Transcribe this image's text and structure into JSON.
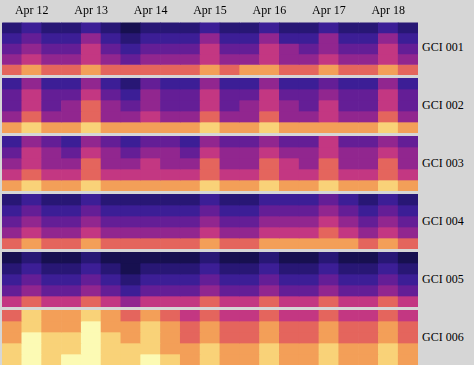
{
  "chart_data": {
    "type": "heatmap",
    "categories": [
      null,
      "Apr 12",
      null,
      null,
      "Apr 13",
      null,
      null,
      "Apr 14",
      null,
      null,
      "Apr 15",
      null,
      null,
      "Apr 16",
      null,
      null,
      "Apr 17",
      null,
      null,
      "Apr 18",
      null
    ],
    "color_range": [
      0,
      10
    ],
    "grid": true,
    "tick_labels": "x",
    "series": [
      {
        "name": "GCI 001",
        "cells": [
          [
            2,
            3,
            2,
            2,
            3,
            2,
            1,
            2,
            2,
            2,
            3,
            2,
            2,
            3,
            2,
            2,
            3,
            2,
            2,
            3,
            2
          ],
          [
            3,
            4,
            3,
            3,
            5,
            3,
            2,
            3,
            3,
            3,
            5,
            3,
            3,
            5,
            3,
            3,
            5,
            3,
            3,
            5,
            3
          ],
          [
            4,
            5,
            4,
            4,
            6,
            4,
            3,
            4,
            4,
            4,
            6,
            4,
            4,
            6,
            5,
            4,
            5,
            4,
            4,
            6,
            4
          ],
          [
            5,
            6,
            5,
            5,
            6,
            5,
            4,
            5,
            5,
            5,
            6,
            5,
            5,
            6,
            5,
            5,
            6,
            5,
            5,
            6,
            5
          ],
          [
            7,
            8,
            7,
            7,
            8,
            7,
            7,
            7,
            7,
            7,
            8,
            7,
            8,
            8,
            7,
            7,
            8,
            7,
            7,
            8,
            7
          ]
        ]
      },
      {
        "name": "GCI 002",
        "cells": [
          [
            3,
            5,
            3,
            3,
            5,
            3,
            2,
            4,
            3,
            3,
            5,
            3,
            3,
            5,
            3,
            3,
            4,
            3,
            3,
            5,
            3
          ],
          [
            4,
            6,
            4,
            4,
            6,
            4,
            3,
            5,
            4,
            4,
            6,
            4,
            4,
            6,
            4,
            4,
            5,
            4,
            4,
            6,
            4
          ],
          [
            4,
            6,
            4,
            5,
            7,
            5,
            4,
            5,
            4,
            4,
            6,
            4,
            5,
            6,
            5,
            4,
            6,
            4,
            4,
            6,
            4
          ],
          [
            5,
            7,
            5,
            5,
            7,
            5,
            5,
            6,
            5,
            5,
            7,
            5,
            5,
            7,
            5,
            5,
            6,
            5,
            5,
            7,
            5
          ],
          [
            8,
            9,
            8,
            8,
            9,
            8,
            8,
            8,
            8,
            8,
            9,
            8,
            8,
            9,
            8,
            8,
            8,
            8,
            8,
            9,
            8
          ]
        ]
      },
      {
        "name": "GCI 003",
        "cells": [
          [
            3,
            5,
            4,
            3,
            5,
            4,
            3,
            4,
            4,
            3,
            5,
            4,
            4,
            5,
            4,
            4,
            6,
            4,
            4,
            5,
            4
          ],
          [
            4,
            6,
            5,
            4,
            6,
            5,
            4,
            5,
            5,
            4,
            6,
            5,
            5,
            6,
            5,
            5,
            6,
            5,
            5,
            6,
            5
          ],
          [
            5,
            6,
            5,
            5,
            7,
            5,
            5,
            6,
            5,
            5,
            7,
            5,
            5,
            7,
            6,
            5,
            7,
            5,
            5,
            7,
            5
          ],
          [
            6,
            7,
            6,
            6,
            7,
            6,
            6,
            6,
            6,
            6,
            7,
            6,
            6,
            7,
            6,
            6,
            7,
            6,
            6,
            7,
            6
          ],
          [
            8,
            9,
            8,
            8,
            9,
            8,
            8,
            8,
            8,
            8,
            9,
            8,
            8,
            9,
            8,
            8,
            9,
            8,
            8,
            9,
            8
          ]
        ]
      },
      {
        "name": "GCI 004",
        "cells": [
          [
            2,
            3,
            2,
            2,
            3,
            2,
            2,
            2,
            2,
            2,
            3,
            2,
            2,
            3,
            3,
            3,
            4,
            3,
            2,
            3,
            2
          ],
          [
            3,
            4,
            3,
            3,
            4,
            3,
            3,
            3,
            3,
            3,
            4,
            3,
            3,
            4,
            4,
            4,
            5,
            4,
            3,
            4,
            3
          ],
          [
            4,
            5,
            4,
            4,
            5,
            4,
            4,
            4,
            4,
            4,
            5,
            4,
            4,
            5,
            5,
            5,
            6,
            5,
            4,
            5,
            4
          ],
          [
            5,
            6,
            5,
            5,
            6,
            5,
            5,
            5,
            5,
            5,
            6,
            5,
            5,
            6,
            6,
            6,
            7,
            6,
            5,
            6,
            5
          ],
          [
            7,
            8,
            7,
            7,
            8,
            7,
            7,
            7,
            7,
            7,
            8,
            7,
            7,
            8,
            8,
            8,
            8,
            8,
            7,
            8,
            7
          ]
        ]
      },
      {
        "name": "GCI 005",
        "cells": [
          [
            1,
            2,
            1,
            1,
            2,
            1,
            1,
            1,
            1,
            1,
            2,
            1,
            1,
            2,
            1,
            1,
            2,
            1,
            1,
            2,
            1
          ],
          [
            2,
            3,
            2,
            2,
            3,
            2,
            1,
            2,
            2,
            2,
            3,
            2,
            2,
            3,
            2,
            2,
            3,
            2,
            2,
            3,
            2
          ],
          [
            3,
            4,
            3,
            3,
            4,
            3,
            2,
            3,
            3,
            3,
            4,
            3,
            3,
            4,
            3,
            3,
            4,
            3,
            3,
            4,
            3
          ],
          [
            4,
            5,
            4,
            4,
            5,
            4,
            3,
            4,
            4,
            4,
            5,
            4,
            4,
            5,
            4,
            4,
            5,
            4,
            4,
            5,
            4
          ],
          [
            6,
            7,
            6,
            6,
            7,
            6,
            5,
            6,
            6,
            6,
            7,
            6,
            6,
            7,
            6,
            6,
            7,
            6,
            6,
            7,
            6
          ]
        ]
      },
      {
        "name": "GCI 006",
        "cells": [
          [
            7,
            9,
            8,
            8,
            9,
            8,
            7,
            8,
            7,
            6,
            7,
            6,
            6,
            7,
            6,
            6,
            7,
            6,
            6,
            7,
            6
          ],
          [
            8,
            9,
            8,
            8,
            10,
            8,
            8,
            9,
            8,
            7,
            8,
            7,
            7,
            8,
            7,
            7,
            8,
            7,
            7,
            8,
            7
          ],
          [
            8,
            10,
            9,
            9,
            10,
            9,
            8,
            9,
            8,
            7,
            8,
            7,
            7,
            8,
            7,
            7,
            8,
            7,
            7,
            8,
            7
          ],
          [
            9,
            10,
            9,
            9,
            10,
            9,
            9,
            9,
            8,
            8,
            9,
            8,
            8,
            9,
            8,
            8,
            9,
            8,
            8,
            9,
            8
          ],
          [
            9,
            10,
            9,
            10,
            10,
            9,
            9,
            10,
            9,
            8,
            9,
            8,
            8,
            9,
            8,
            8,
            9,
            8,
            8,
            9,
            8
          ]
        ]
      }
    ]
  }
}
